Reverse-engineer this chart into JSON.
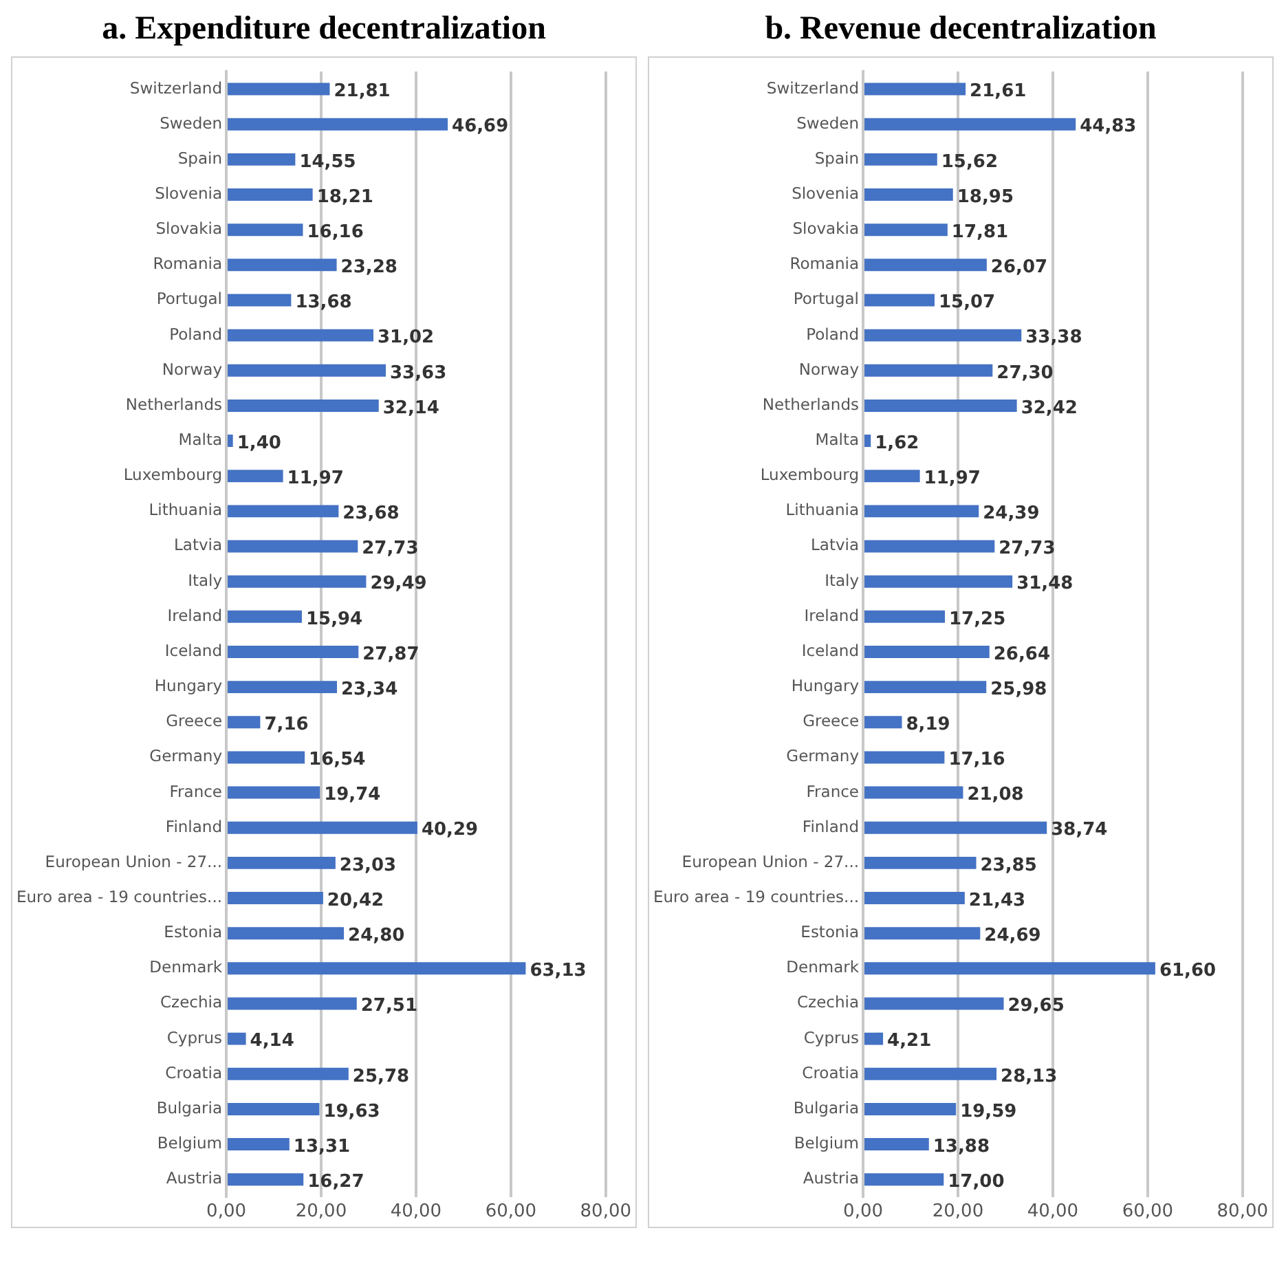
{
  "chart_data": [
    {
      "type": "bar",
      "orientation": "horizontal",
      "title": "a. Expenditure decentralization",
      "categories": [
        "Switzerland",
        "Sweden",
        "Spain",
        "Slovenia",
        "Slovakia",
        "Romania",
        "Portugal",
        "Poland",
        "Norway",
        "Netherlands",
        "Malta",
        "Luxembourg",
        "Lithuania",
        "Latvia",
        "Italy",
        "Ireland",
        "Iceland",
        "Hungary",
        "Greece",
        "Germany",
        "France",
        "Finland",
        "European Union - 27...",
        "Euro area - 19 countries...",
        "Estonia",
        "Denmark",
        "Czechia",
        "Cyprus",
        "Croatia",
        "Bulgaria",
        "Belgium",
        "Austria"
      ],
      "values": [
        21.81,
        46.69,
        14.55,
        18.21,
        16.16,
        23.28,
        13.68,
        31.02,
        33.63,
        32.14,
        1.4,
        11.97,
        23.68,
        27.73,
        29.49,
        15.94,
        27.87,
        23.34,
        7.16,
        16.54,
        19.74,
        40.29,
        23.03,
        20.42,
        24.8,
        63.13,
        27.51,
        4.14,
        25.78,
        19.63,
        13.31,
        16.27
      ],
      "value_labels": [
        "21,81",
        "46,69",
        "14,55",
        "18,21",
        "16,16",
        "23,28",
        "13,68",
        "31,02",
        "33,63",
        "32,14",
        "1,40",
        "11,97",
        "23,68",
        "27,73",
        "29,49",
        "15,94",
        "27,87",
        "23,34",
        "7,16",
        "16,54",
        "19,74",
        "40,29",
        "23,03",
        "20,42",
        "24,80",
        "63,13",
        "27,51",
        "4,14",
        "25,78",
        "19,63",
        "13,31",
        "16,27"
      ],
      "color": "#4472c4",
      "xlim": [
        0,
        80
      ],
      "xticks": [
        {
          "value": 0,
          "label": "0,00"
        },
        {
          "value": 20,
          "label": "20,00"
        },
        {
          "value": 40,
          "label": "40,00"
        },
        {
          "value": 60,
          "label": "60,00"
        },
        {
          "value": 80,
          "label": "80,00"
        }
      ],
      "grid": "x"
    },
    {
      "type": "bar",
      "orientation": "horizontal",
      "title": "b. Revenue decentralization",
      "categories": [
        "Switzerland",
        "Sweden",
        "Spain",
        "Slovenia",
        "Slovakia",
        "Romania",
        "Portugal",
        "Poland",
        "Norway",
        "Netherlands",
        "Malta",
        "Luxembourg",
        "Lithuania",
        "Latvia",
        "Italy",
        "Ireland",
        "Iceland",
        "Hungary",
        "Greece",
        "Germany",
        "France",
        "Finland",
        "European Union - 27...",
        "Euro area - 19 countries...",
        "Estonia",
        "Denmark",
        "Czechia",
        "Cyprus",
        "Croatia",
        "Bulgaria",
        "Belgium",
        "Austria"
      ],
      "values": [
        21.61,
        44.83,
        15.62,
        18.95,
        17.81,
        26.07,
        15.07,
        33.38,
        27.3,
        32.42,
        1.62,
        11.97,
        24.39,
        27.73,
        31.48,
        17.25,
        26.64,
        25.98,
        8.19,
        17.16,
        21.08,
        38.74,
        23.85,
        21.43,
        24.69,
        61.6,
        29.65,
        4.21,
        28.13,
        19.59,
        13.88,
        17.0
      ],
      "value_labels": [
        "21,61",
        "44,83",
        "15,62",
        "18,95",
        "17,81",
        "26,07",
        "15,07",
        "33,38",
        "27,30",
        "32,42",
        "1,62",
        "11,97",
        "24,39",
        "27,73",
        "31,48",
        "17,25",
        "26,64",
        "25,98",
        "8,19",
        "17,16",
        "21,08",
        "38,74",
        "23,85",
        "21,43",
        "24,69",
        "61,60",
        "29,65",
        "4,21",
        "28,13",
        "19,59",
        "13,88",
        "17,00"
      ],
      "color": "#4472c4",
      "xlim": [
        0,
        80
      ],
      "xticks": [
        {
          "value": 0,
          "label": "0,00"
        },
        {
          "value": 20,
          "label": "20,00"
        },
        {
          "value": 40,
          "label": "40,00"
        },
        {
          "value": 60,
          "label": "60,00"
        },
        {
          "value": 80,
          "label": "80,00"
        }
      ],
      "grid": "x"
    }
  ]
}
